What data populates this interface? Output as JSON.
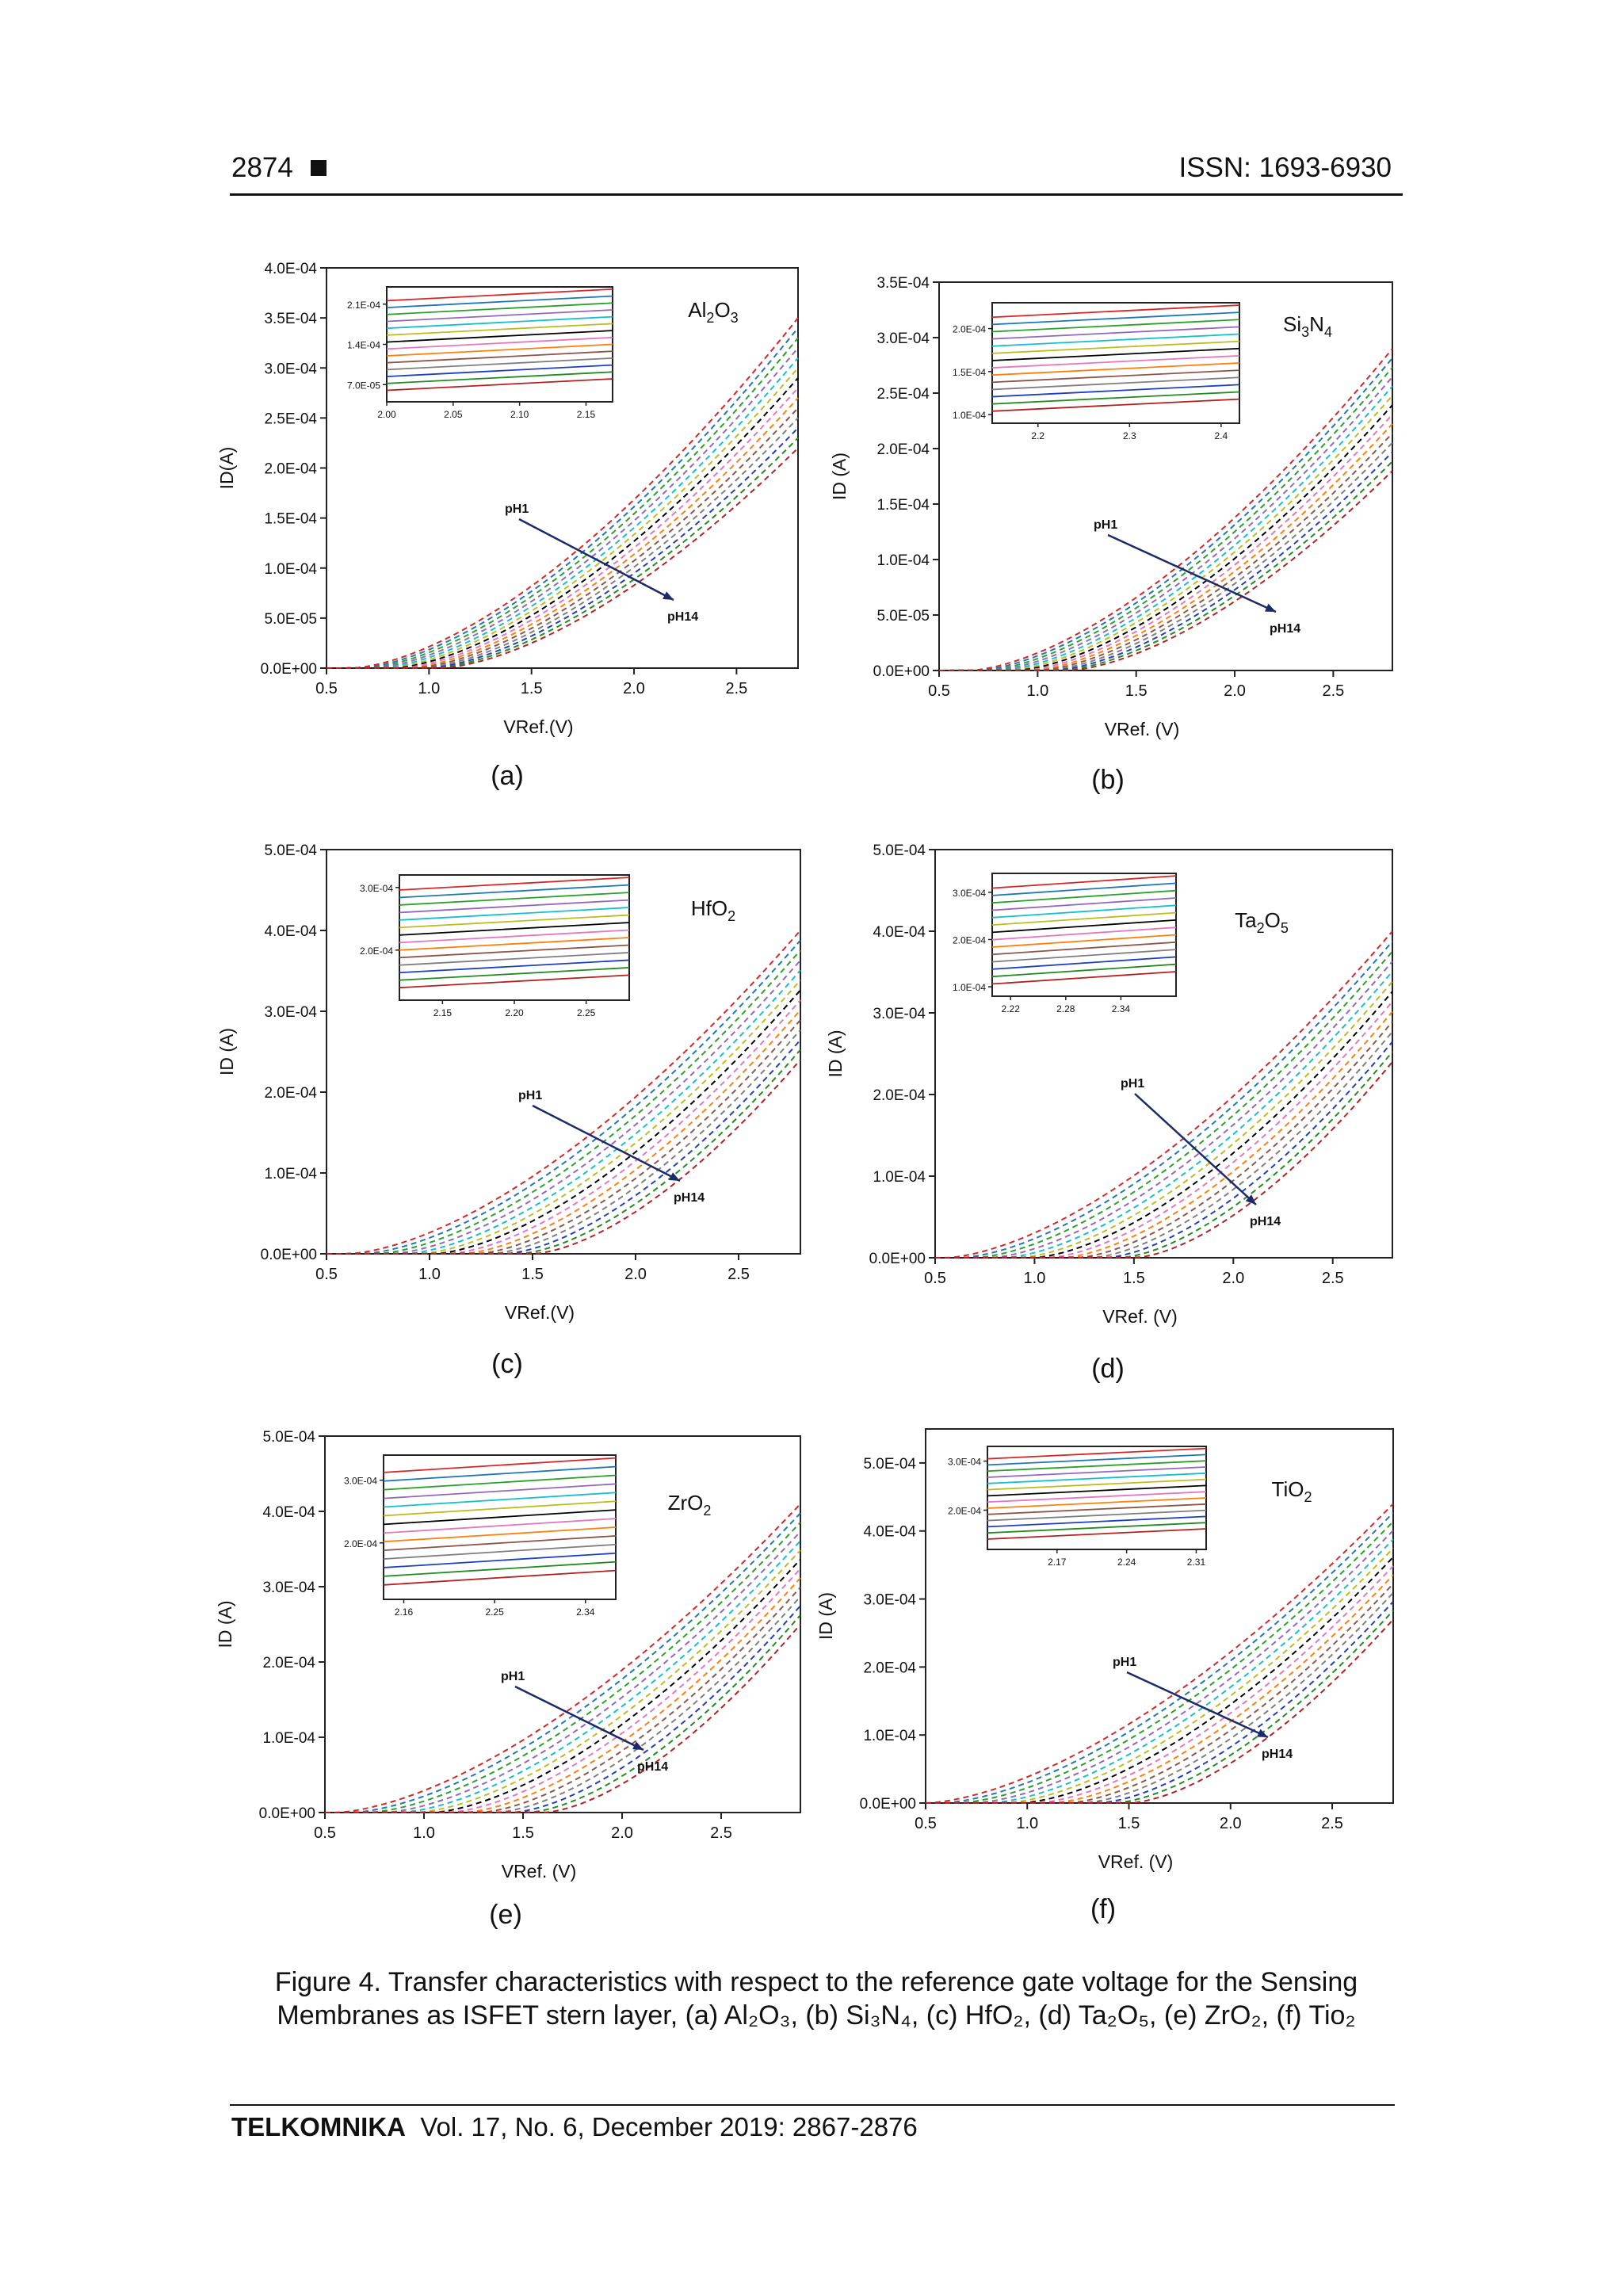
{
  "header": {
    "page_number": "2874",
    "issn": "ISSN: 1693-6930"
  },
  "caption": "Figure 4. Transfer characteristics with respect to the reference gate voltage for the Sensing Membranes as ISFET stern layer, (a) Al₂O₃, (b) Si₃N₄, (c) HfO₂, (d) Ta₂O₅, (e) ZrO₂, (f) Tio₂",
  "footer": {
    "journal": "TELKOMNIKA",
    "details": "Vol. 17, No. 6, December 2019:  2867-2876"
  },
  "series_colors": [
    "#d62728",
    "#1f77b4",
    "#2ca02c",
    "#9467bd",
    "#17becf",
    "#bcbd22",
    "#000000",
    "#e377c2",
    "#ff7f0e",
    "#8c564b",
    "#7f7f7f",
    "#1f3fbf",
    "#228b22",
    "#b22222"
  ],
  "chart_data": [
    {
      "type": "line",
      "label": "(a)",
      "material": "Al2O3",
      "material_text": "Al",
      "ylabel": "ID(A)",
      "xlabel": "VRef.(V)",
      "xlim": [
        0.5,
        2.8
      ],
      "ylim": [
        0,
        0.0004
      ],
      "yticks": [
        "0.0E+00",
        "5.0E-05",
        "1.0E-04",
        "1.5E-04",
        "2.0E-04",
        "2.5E-04",
        "3.0E-04",
        "3.5E-04",
        "4.0E-04"
      ],
      "ytick_vals": [
        0,
        5e-05,
        0.0001,
        0.00015,
        0.0002,
        0.00025,
        0.0003,
        0.00035,
        0.0004
      ],
      "xticks": [
        "0.5",
        "1.0",
        "1.5",
        "2.0",
        "2.5"
      ],
      "xtick_vals": [
        0.5,
        1.0,
        1.5,
        2.0,
        2.5
      ],
      "series_start": "pH1",
      "series_end": "pH14",
      "vt_first": 0.62,
      "vt_last": 1.05,
      "y_end_first": 0.00035,
      "y_end_last": 0.00022,
      "inset": {
        "xlim": [
          2.0,
          2.17
        ],
        "xticks": [
          "2.00",
          "2.05",
          "2.10",
          "2.15"
        ],
        "xtick_vals": [
          2.0,
          2.05,
          2.1,
          2.15
        ],
        "yticks": [
          "7.0E-05",
          "1.4E-04",
          "2.1E-04"
        ],
        "ytick_vals": [
          7e-05,
          0.00014,
          0.00021
        ],
        "ylim": [
          4e-05,
          0.00024
        ]
      }
    },
    {
      "type": "line",
      "label": "(b)",
      "material": "Si3N4",
      "ylabel": "ID (A)",
      "xlabel": "VRef. (V)",
      "xlim": [
        0.5,
        2.8
      ],
      "ylim": [
        0,
        0.00035
      ],
      "yticks": [
        "0.0E+00",
        "5.0E-05",
        "1.0E-04",
        "1.5E-04",
        "2.0E-04",
        "2.5E-04",
        "3.0E-04",
        "3.5E-04"
      ],
      "ytick_vals": [
        0,
        5e-05,
        0.0001,
        0.00015,
        0.0002,
        0.00025,
        0.0003,
        0.00035
      ],
      "xticks": [
        "0.5",
        "1.0",
        "1.5",
        "2.0",
        "2.5"
      ],
      "xtick_vals": [
        0.5,
        1.0,
        1.5,
        2.0,
        2.5
      ],
      "series_start": "pH1",
      "series_end": "pH14",
      "vt_first": 0.65,
      "vt_last": 1.15,
      "y_end_first": 0.00029,
      "y_end_last": 0.00018,
      "inset": {
        "xlim": [
          2.15,
          2.42
        ],
        "xticks": [
          "2.2",
          "2.3",
          "2.4"
        ],
        "xtick_vals": [
          2.2,
          2.3,
          2.4
        ],
        "yticks": [
          "1.0E-04",
          "1.5E-04",
          "2.0E-04"
        ],
        "ytick_vals": [
          0.0001,
          0.00015,
          0.0002
        ],
        "ylim": [
          9e-05,
          0.00023
        ]
      }
    },
    {
      "type": "line",
      "label": "(c)",
      "material": "HfO2",
      "ylabel": "ID (A)",
      "xlabel": "VRef.(V)",
      "xlim": [
        0.5,
        2.8
      ],
      "ylim": [
        0,
        0.0005
      ],
      "yticks": [
        "0.0E+00",
        "1.0E-04",
        "2.0E-04",
        "3.0E-04",
        "4.0E-04",
        "5.0E-04"
      ],
      "ytick_vals": [
        0,
        0.0001,
        0.0002,
        0.0003,
        0.0004,
        0.0005
      ],
      "xticks": [
        "0.5",
        "1.0",
        "1.5",
        "2.0",
        "2.5"
      ],
      "xtick_vals": [
        0.5,
        1.0,
        1.5,
        2.0,
        2.5
      ],
      "series_start": "pH1",
      "series_end": "pH14",
      "vt_first": 0.6,
      "vt_last": 1.5,
      "y_end_first": 0.0004,
      "y_end_last": 0.00024,
      "inset": {
        "xlim": [
          2.12,
          2.28
        ],
        "xticks": [
          "2.15",
          "2.20",
          "2.25"
        ],
        "xtick_vals": [
          2.15,
          2.2,
          2.25
        ],
        "yticks": [
          "2.0E-04",
          "3.0E-04"
        ],
        "ytick_vals": [
          0.0002,
          0.0003
        ],
        "ylim": [
          0.00012,
          0.00032
        ]
      }
    },
    {
      "type": "line",
      "label": "(d)",
      "material": "Ta2O5",
      "ylabel": "ID (A)",
      "xlabel": "VRef. (V)",
      "xlim": [
        0.5,
        2.8
      ],
      "ylim": [
        0,
        0.0005
      ],
      "yticks": [
        "0.0E+00",
        "1.0E-04",
        "2.0E-04",
        "3.0E-04",
        "4.0E-04",
        "5.0E-04"
      ],
      "ytick_vals": [
        0,
        0.0001,
        0.0002,
        0.0003,
        0.0004,
        0.0005
      ],
      "xticks": [
        "0.5",
        "1.0",
        "1.5",
        "2.0",
        "2.5"
      ],
      "xtick_vals": [
        0.5,
        1.0,
        1.5,
        2.0,
        2.5
      ],
      "series_start": "pH1",
      "series_end": "pH14",
      "vt_first": 0.55,
      "vt_last": 1.5,
      "y_end_first": 0.0004,
      "y_end_last": 0.00024,
      "inset": {
        "xlim": [
          2.2,
          2.4
        ],
        "xticks": [
          "2.22",
          "2.28",
          "2.34"
        ],
        "xtick_vals": [
          2.22,
          2.28,
          2.34
        ],
        "yticks": [
          "1.0E-04",
          "2.0E-04",
          "3.0E-04"
        ],
        "ytick_vals": [
          0.0001,
          0.0002,
          0.0003
        ],
        "ylim": [
          8e-05,
          0.00034
        ]
      }
    },
    {
      "type": "line",
      "label": "(e)",
      "material": "ZrO2",
      "ylabel": "ID (A)",
      "xlabel": "VRef. (V)",
      "xlim": [
        0.5,
        2.9
      ],
      "ylim": [
        0,
        0.0005
      ],
      "yticks": [
        "0.0E+00",
        "1.0E-04",
        "2.0E-04",
        "3.0E-04",
        "4.0E-04",
        "5.0E-04"
      ],
      "ytick_vals": [
        0,
        0.0001,
        0.0002,
        0.0003,
        0.0004,
        0.0005
      ],
      "xticks": [
        "0.5",
        "1.0",
        "1.5",
        "2.0",
        "2.5"
      ],
      "xtick_vals": [
        0.5,
        1.0,
        1.5,
        2.0,
        2.5
      ],
      "series_start": "pH1",
      "series_end": "pH14",
      "vt_first": 0.55,
      "vt_last": 1.6,
      "y_end_first": 0.00041,
      "y_end_last": 0.00025,
      "inset": {
        "xlim": [
          2.14,
          2.37
        ],
        "xticks": [
          "2.16",
          "2.25",
          "2.34"
        ],
        "xtick_vals": [
          2.16,
          2.25,
          2.34
        ],
        "yticks": [
          "2.0E-04",
          "3.0E-04"
        ],
        "ytick_vals": [
          0.0002,
          0.0003
        ],
        "ylim": [
          0.00011,
          0.00034
        ]
      }
    },
    {
      "type": "line",
      "label": "(f)",
      "material": "TiO2",
      "ylabel": "ID (A)",
      "xlabel": "VRef. (V)",
      "xlim": [
        0.5,
        2.8
      ],
      "ylim": [
        0,
        0.00055
      ],
      "yticks": [
        "0.0E+00",
        "1.0E-04",
        "2.0E-04",
        "3.0E-04",
        "4.0E-04",
        "5.0E-04"
      ],
      "ytick_vals": [
        0,
        0.0001,
        0.0002,
        0.0003,
        0.0004,
        0.0005
      ],
      "xticks": [
        "0.5",
        "1.0",
        "1.5",
        "2.0",
        "2.5"
      ],
      "xtick_vals": [
        0.5,
        1.0,
        1.5,
        2.0,
        2.5
      ],
      "series_start": "pH1",
      "series_end": "pH14",
      "vt_first": 0.5,
      "vt_last": 1.5,
      "y_end_first": 0.00044,
      "y_end_last": 0.00027,
      "inset": {
        "xlim": [
          2.1,
          2.32
        ],
        "xticks": [
          "2.17",
          "2.24",
          "2.31"
        ],
        "xtick_vals": [
          2.17,
          2.24,
          2.31
        ],
        "yticks": [
          "2.0E-04",
          "3.0E-04"
        ],
        "ytick_vals": [
          0.0002,
          0.0003
        ],
        "ylim": [
          0.00012,
          0.00033
        ]
      }
    }
  ]
}
